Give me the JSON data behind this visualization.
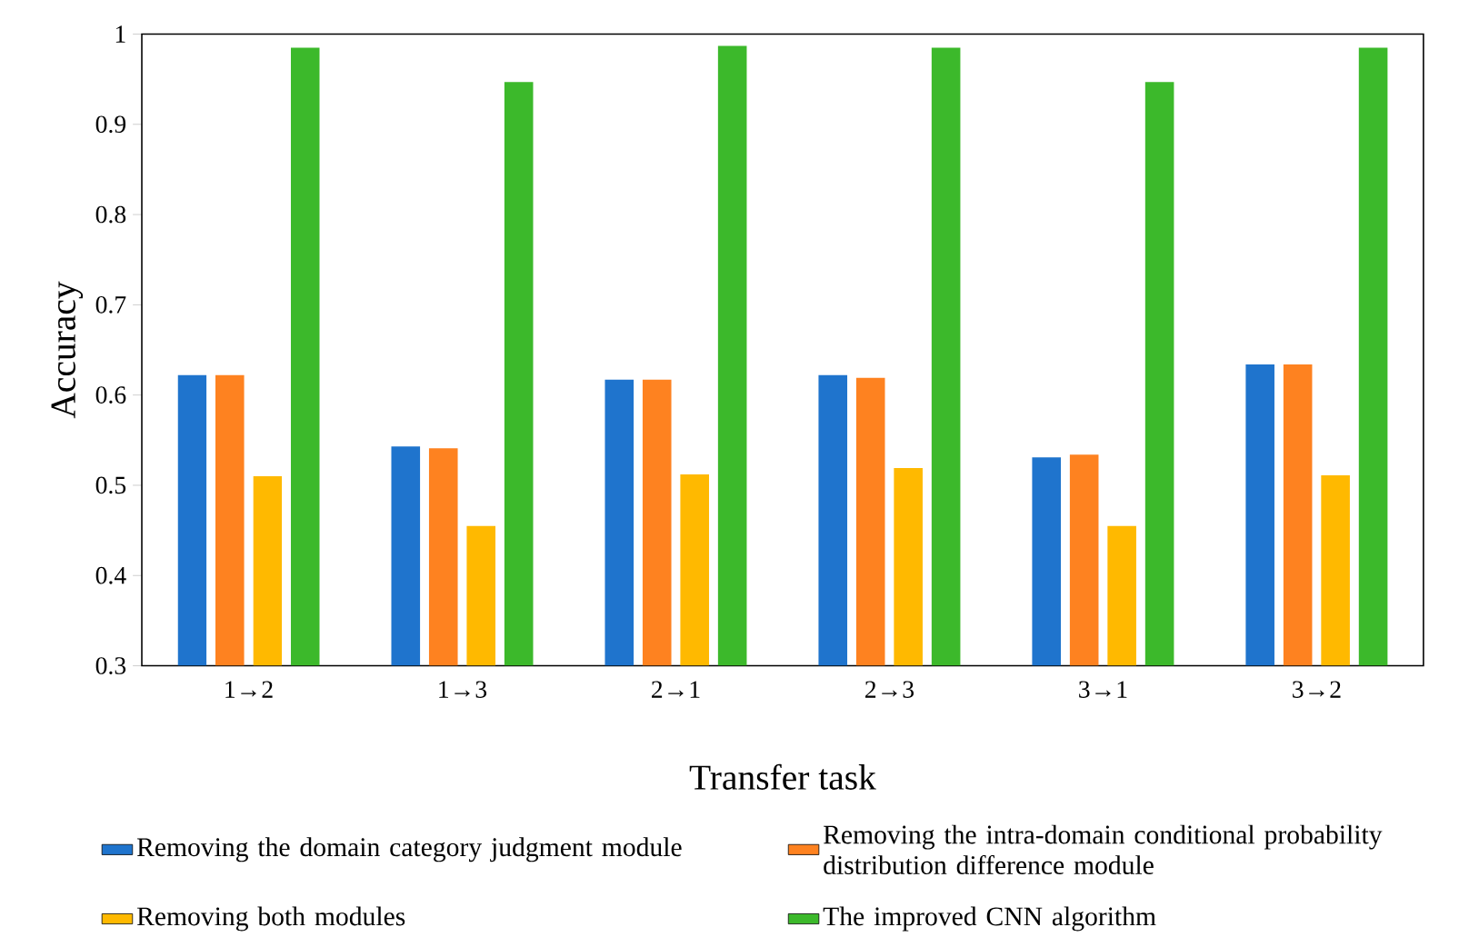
{
  "chart_data": {
    "type": "bar",
    "xlabel": "Transfer task",
    "ylabel": "Accuracy",
    "categories": [
      "1→2",
      "1→3",
      "2→1",
      "2→3",
      "3→1",
      "3→2"
    ],
    "series": [
      {
        "name": "Removing the domain category judgment module",
        "color": "#1f74cd",
        "values": [
          0.622,
          0.543,
          0.617,
          0.622,
          0.531,
          0.634
        ]
      },
      {
        "name": "Removing the intra-domain conditional probability distribution difference module",
        "color": "#fe8220",
        "values": [
          0.622,
          0.541,
          0.617,
          0.619,
          0.534,
          0.634
        ]
      },
      {
        "name": "Removing both modules",
        "color": "#ffb900",
        "values": [
          0.51,
          0.455,
          0.512,
          0.519,
          0.455,
          0.511
        ]
      },
      {
        "name": "The improved CNN algorithm",
        "color": "#3cb92b",
        "values": [
          0.985,
          0.947,
          0.987,
          0.985,
          0.947,
          0.985
        ]
      }
    ],
    "ylim": [
      0.3,
      1
    ],
    "yticks": [
      0.3,
      0.4,
      0.5,
      0.6,
      0.7,
      0.8,
      0.9,
      1
    ],
    "legend": "bottom"
  }
}
